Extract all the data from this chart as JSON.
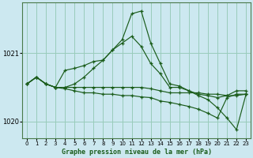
{
  "title": "Graphe pression niveau de la mer (hPa)",
  "background_color": "#cce8f0",
  "grid_color": "#99ccbb",
  "line_color": "#1a5c1a",
  "xlim_min": -0.5,
  "xlim_max": 23.5,
  "ylim_min": 1019.75,
  "ylim_max": 1021.75,
  "yticks": [
    1020,
    1021
  ],
  "xtick_labels": [
    "0",
    "1",
    "2",
    "3",
    "4",
    "5",
    "6",
    "7",
    "8",
    "9",
    "10",
    "11",
    "12",
    "13",
    "14",
    "15",
    "16",
    "17",
    "18",
    "19",
    "20",
    "21",
    "22",
    "23"
  ],
  "series": [
    [
      1020.55,
      1020.65,
      1020.55,
      1020.5,
      1020.5,
      1020.5,
      1020.5,
      1020.5,
      1020.5,
      1020.5,
      1020.5,
      1020.5,
      1020.5,
      1020.48,
      1020.45,
      1020.42,
      1020.42,
      1020.42,
      1020.42,
      1020.4,
      1020.4,
      1020.38,
      1020.38,
      1020.4
    ],
    [
      1020.55,
      1020.65,
      1020.55,
      1020.5,
      1020.48,
      1020.45,
      1020.42,
      1020.42,
      1020.4,
      1020.4,
      1020.38,
      1020.38,
      1020.36,
      1020.35,
      1020.3,
      1020.28,
      1020.25,
      1020.22,
      1020.18,
      1020.12,
      1020.05,
      1020.35,
      1020.4,
      1020.4
    ],
    [
      1020.55,
      1020.65,
      1020.55,
      1020.5,
      1020.75,
      1020.78,
      1020.82,
      1020.88,
      1020.9,
      1021.05,
      1021.15,
      1021.25,
      1021.1,
      1020.85,
      1020.7,
      1020.5,
      1020.5,
      1020.45,
      1020.4,
      1020.38,
      1020.35,
      1020.38,
      1020.45,
      1020.45
    ],
    [
      1020.55,
      1020.65,
      1020.55,
      1020.5,
      1020.5,
      1020.55,
      1020.65,
      1020.78,
      1020.9,
      1021.05,
      1021.2,
      1021.58,
      1021.62,
      1021.15,
      1020.85,
      1020.55,
      1020.52,
      1020.45,
      1020.38,
      1020.32,
      1020.2,
      1020.05,
      1019.88,
      1020.4
    ]
  ]
}
